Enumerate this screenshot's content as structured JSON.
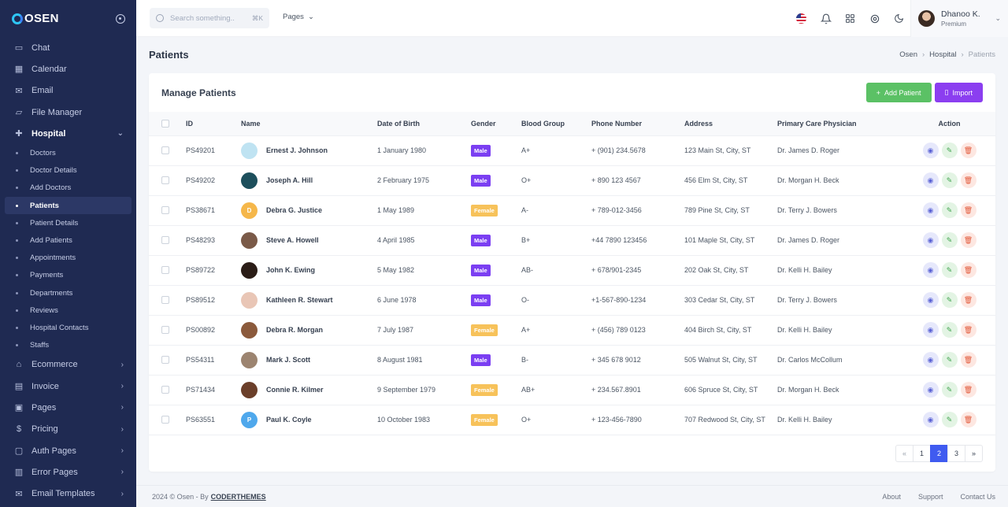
{
  "brand": {
    "name": "OSEN"
  },
  "sidebar": {
    "items_top": [
      {
        "label": "Chat",
        "icon": "chat-icon",
        "glyph": "▭"
      },
      {
        "label": "Calendar",
        "icon": "calendar-icon",
        "glyph": "▦"
      },
      {
        "label": "Email",
        "icon": "email-icon",
        "glyph": "✉"
      },
      {
        "label": "File Manager",
        "icon": "folder-icon",
        "glyph": "▱"
      }
    ],
    "hospital": {
      "label": "Hospital",
      "glyph": "✚",
      "children": [
        "Doctors",
        "Doctor Details",
        "Add Doctors",
        "Patients",
        "Patient Details",
        "Add Patients",
        "Appointments",
        "Payments",
        "Departments",
        "Reviews",
        "Hospital Contacts",
        "Staffs"
      ],
      "active": "Patients"
    },
    "items_bottom": [
      {
        "label": "Ecommerce",
        "icon": "basket-icon",
        "glyph": "⌂"
      },
      {
        "label": "Invoice",
        "icon": "invoice-icon",
        "glyph": "▤"
      },
      {
        "label": "Pages",
        "icon": "pages-icon",
        "glyph": "▣"
      },
      {
        "label": "Pricing",
        "icon": "pricing-icon",
        "glyph": "$"
      },
      {
        "label": "Auth Pages",
        "icon": "lock-icon",
        "glyph": "▢"
      },
      {
        "label": "Error Pages",
        "icon": "error-icon",
        "glyph": "▥"
      },
      {
        "label": "Email Templates",
        "icon": "mail-template-icon",
        "glyph": "✉"
      }
    ]
  },
  "topbar": {
    "search_placeholder": "Search something..",
    "search_kbd": "⌘K",
    "pages_label": "Pages",
    "user_name": "Dhanoo K.",
    "user_role": "Premium"
  },
  "page": {
    "title": "Patients",
    "breadcrumb": [
      "Osen",
      "Hospital",
      "Patients"
    ]
  },
  "card": {
    "title": "Manage Patients",
    "add_label": "Add Patient",
    "import_label": "Import"
  },
  "table": {
    "headers": [
      "ID",
      "Name",
      "Date of Birth",
      "Gender",
      "Blood Group",
      "Phone Number",
      "Address",
      "Primary Care Physician",
      "Action"
    ],
    "rows": [
      {
        "id": "PS49201",
        "name": "Ernest J. Johnson",
        "dob": "1 January 1980",
        "gender": "Male",
        "blood": "A+",
        "phone": "+ (901) 234.5678",
        "address": "123 Main St, City, ST",
        "physician": "Dr. James D. Roger",
        "avatar_color": "#bfe3f2",
        "initial": ""
      },
      {
        "id": "PS49202",
        "name": "Joseph A. Hill",
        "dob": "2 February 1975",
        "gender": "Male",
        "blood": "O+",
        "phone": "+ 890 123 4567",
        "address": "456 Elm St, City, ST",
        "physician": "Dr. Morgan H. Beck",
        "avatar_color": "#1d4f5c",
        "initial": ""
      },
      {
        "id": "PS38671",
        "name": "Debra G. Justice",
        "dob": "1 May 1989",
        "gender": "Female",
        "blood": "A-",
        "phone": "+ 789-012-3456",
        "address": "789 Pine St, City, ST",
        "physician": "Dr. Terry J. Bowers",
        "avatar_color": "#f5b74a",
        "initial": "D"
      },
      {
        "id": "PS48293",
        "name": "Steve A. Howell",
        "dob": "4 April 1985",
        "gender": "Male",
        "blood": "B+",
        "phone": "+44 7890 123456",
        "address": "101 Maple St, City, ST",
        "physician": "Dr. James D. Roger",
        "avatar_color": "#7a5a48",
        "initial": ""
      },
      {
        "id": "PS89722",
        "name": "John K. Ewing",
        "dob": "5 May 1982",
        "gender": "Male",
        "blood": "AB-",
        "phone": "+ 678/901-2345",
        "address": "202 Oak St, City, ST",
        "physician": "Dr. Kelli H. Bailey",
        "avatar_color": "#2b1d17",
        "initial": ""
      },
      {
        "id": "PS89512",
        "name": "Kathleen R. Stewart",
        "dob": "6 June 1978",
        "gender": "Male",
        "blood": "O-",
        "phone": "+1-567-890-1234",
        "address": "303 Cedar St, City, ST",
        "physician": "Dr. Terry J. Bowers",
        "avatar_color": "#e9c6b6",
        "initial": ""
      },
      {
        "id": "PS00892",
        "name": "Debra R. Morgan",
        "dob": "7 July 1987",
        "gender": "Female",
        "blood": "A+",
        "phone": "+ (456) 789 0123",
        "address": "404 Birch St, City, ST",
        "physician": "Dr. Kelli H. Bailey",
        "avatar_color": "#8b5a3c",
        "initial": ""
      },
      {
        "id": "PS54311",
        "name": "Mark J. Scott",
        "dob": "8 August 1981",
        "gender": "Male",
        "blood": "B-",
        "phone": "+ 345 678 9012",
        "address": "505 Walnut St, City, ST",
        "physician": "Dr. Carlos McCollum",
        "avatar_color": "#9c8470",
        "initial": ""
      },
      {
        "id": "PS71434",
        "name": "Connie R. Kilmer",
        "dob": "9 September 1979",
        "gender": "Female",
        "blood": "AB+",
        "phone": "+ 234.567.8901",
        "address": "606 Spruce St, City, ST",
        "physician": "Dr. Morgan H. Beck",
        "avatar_color": "#6b3f2a",
        "initial": ""
      },
      {
        "id": "PS63551",
        "name": "Paul K. Coyle",
        "dob": "10 October 1983",
        "gender": "Female",
        "blood": "O+",
        "phone": "+ 123-456-7890",
        "address": "707 Redwood St, City, ST",
        "physician": "Dr. Kelli H. Bailey",
        "avatar_color": "#4fa8ec",
        "initial": "P"
      }
    ]
  },
  "pagination": {
    "pages": [
      "«",
      "1",
      "2",
      "3",
      "»"
    ],
    "active": "2"
  },
  "footer": {
    "copyright": "2024 © Osen - By",
    "author": "CODERTHEMES",
    "links": [
      "About",
      "Support",
      "Contact Us"
    ]
  },
  "colors": {
    "male_badge": "#7b3ff2",
    "female_badge": "#f7c25a"
  }
}
